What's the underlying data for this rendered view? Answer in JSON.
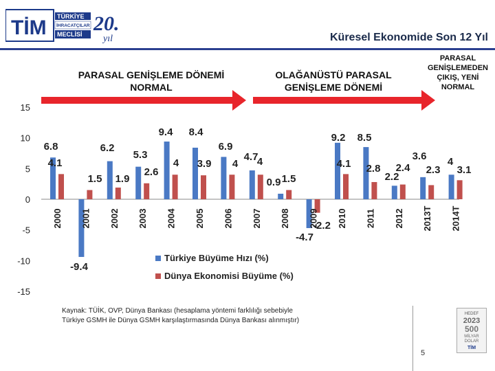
{
  "header": {
    "logo_text_tim": "TİM",
    "logo_text_line1": "TÜRKİYE",
    "logo_text_line2": "İHRACATÇILAR",
    "logo_text_line3": "MECLİSİ",
    "logo_anniv": "20.",
    "logo_anniv_sub": "yıl",
    "slide_title": "Küresel Ekonomide Son 12 Yıl"
  },
  "phases": {
    "normal": "PARASAL GENİŞLEME DÖNEMİ NORMAL",
    "extraordinary": "OLAĞANÜSTÜ PARASAL GENİŞLEME DÖNEMİ",
    "exit": "PARASAL GENİŞLEMEDEN ÇIKIŞ, YENİ NORMAL"
  },
  "chart_data": {
    "type": "bar",
    "categories": [
      "2000",
      "2001",
      "2002",
      "2003",
      "2004",
      "2005",
      "2006",
      "2007",
      "2008",
      "2009",
      "2010",
      "2011",
      "2012",
      "2013T",
      "2014T"
    ],
    "series": [
      {
        "name": "Türkiye Büyüme Hızı (%)",
        "color": "#4a79c4",
        "values": [
          6.8,
          -9.4,
          6.2,
          5.3,
          9.4,
          8.4,
          6.9,
          4.7,
          0.9,
          -4.7,
          9.2,
          8.5,
          2.2,
          3.6,
          4.0
        ]
      },
      {
        "name": "Dünya Ekonomisi Büyüme (%)",
        "color": "#c0504d",
        "values": [
          4.1,
          1.5,
          1.9,
          2.6,
          4,
          3.9,
          4,
          4,
          1.5,
          -2.2,
          4.1,
          2.8,
          2.4,
          2.3,
          3.1
        ]
      }
    ],
    "y_ticks": [
      "15",
      "10",
      "5",
      "0",
      "-5",
      "-10",
      "-15"
    ],
    "ylim": [
      -15,
      15
    ],
    "legend_position": "bottom-center"
  },
  "footer": {
    "source_line1": "Kaynak: TÜİK, OVP, Dünya Bankası (hesaplama yöntemi farklılığı sebebiyle",
    "source_line2": "Türkiye GSMH ile Dünya GSMH karşılaştırmasında Dünya Bankası alınmıştır)",
    "badge_hedef": "HEDEF",
    "badge_year": "2023",
    "badge_amount": "500",
    "badge_unit1": "MİLYAR",
    "badge_unit2": "DOLAR",
    "badge_tim": "TİM",
    "page_number": "5"
  },
  "colors": {
    "arrow": "#e8252b",
    "title": "#1a2a4a",
    "rule": "#2a3f8f"
  }
}
